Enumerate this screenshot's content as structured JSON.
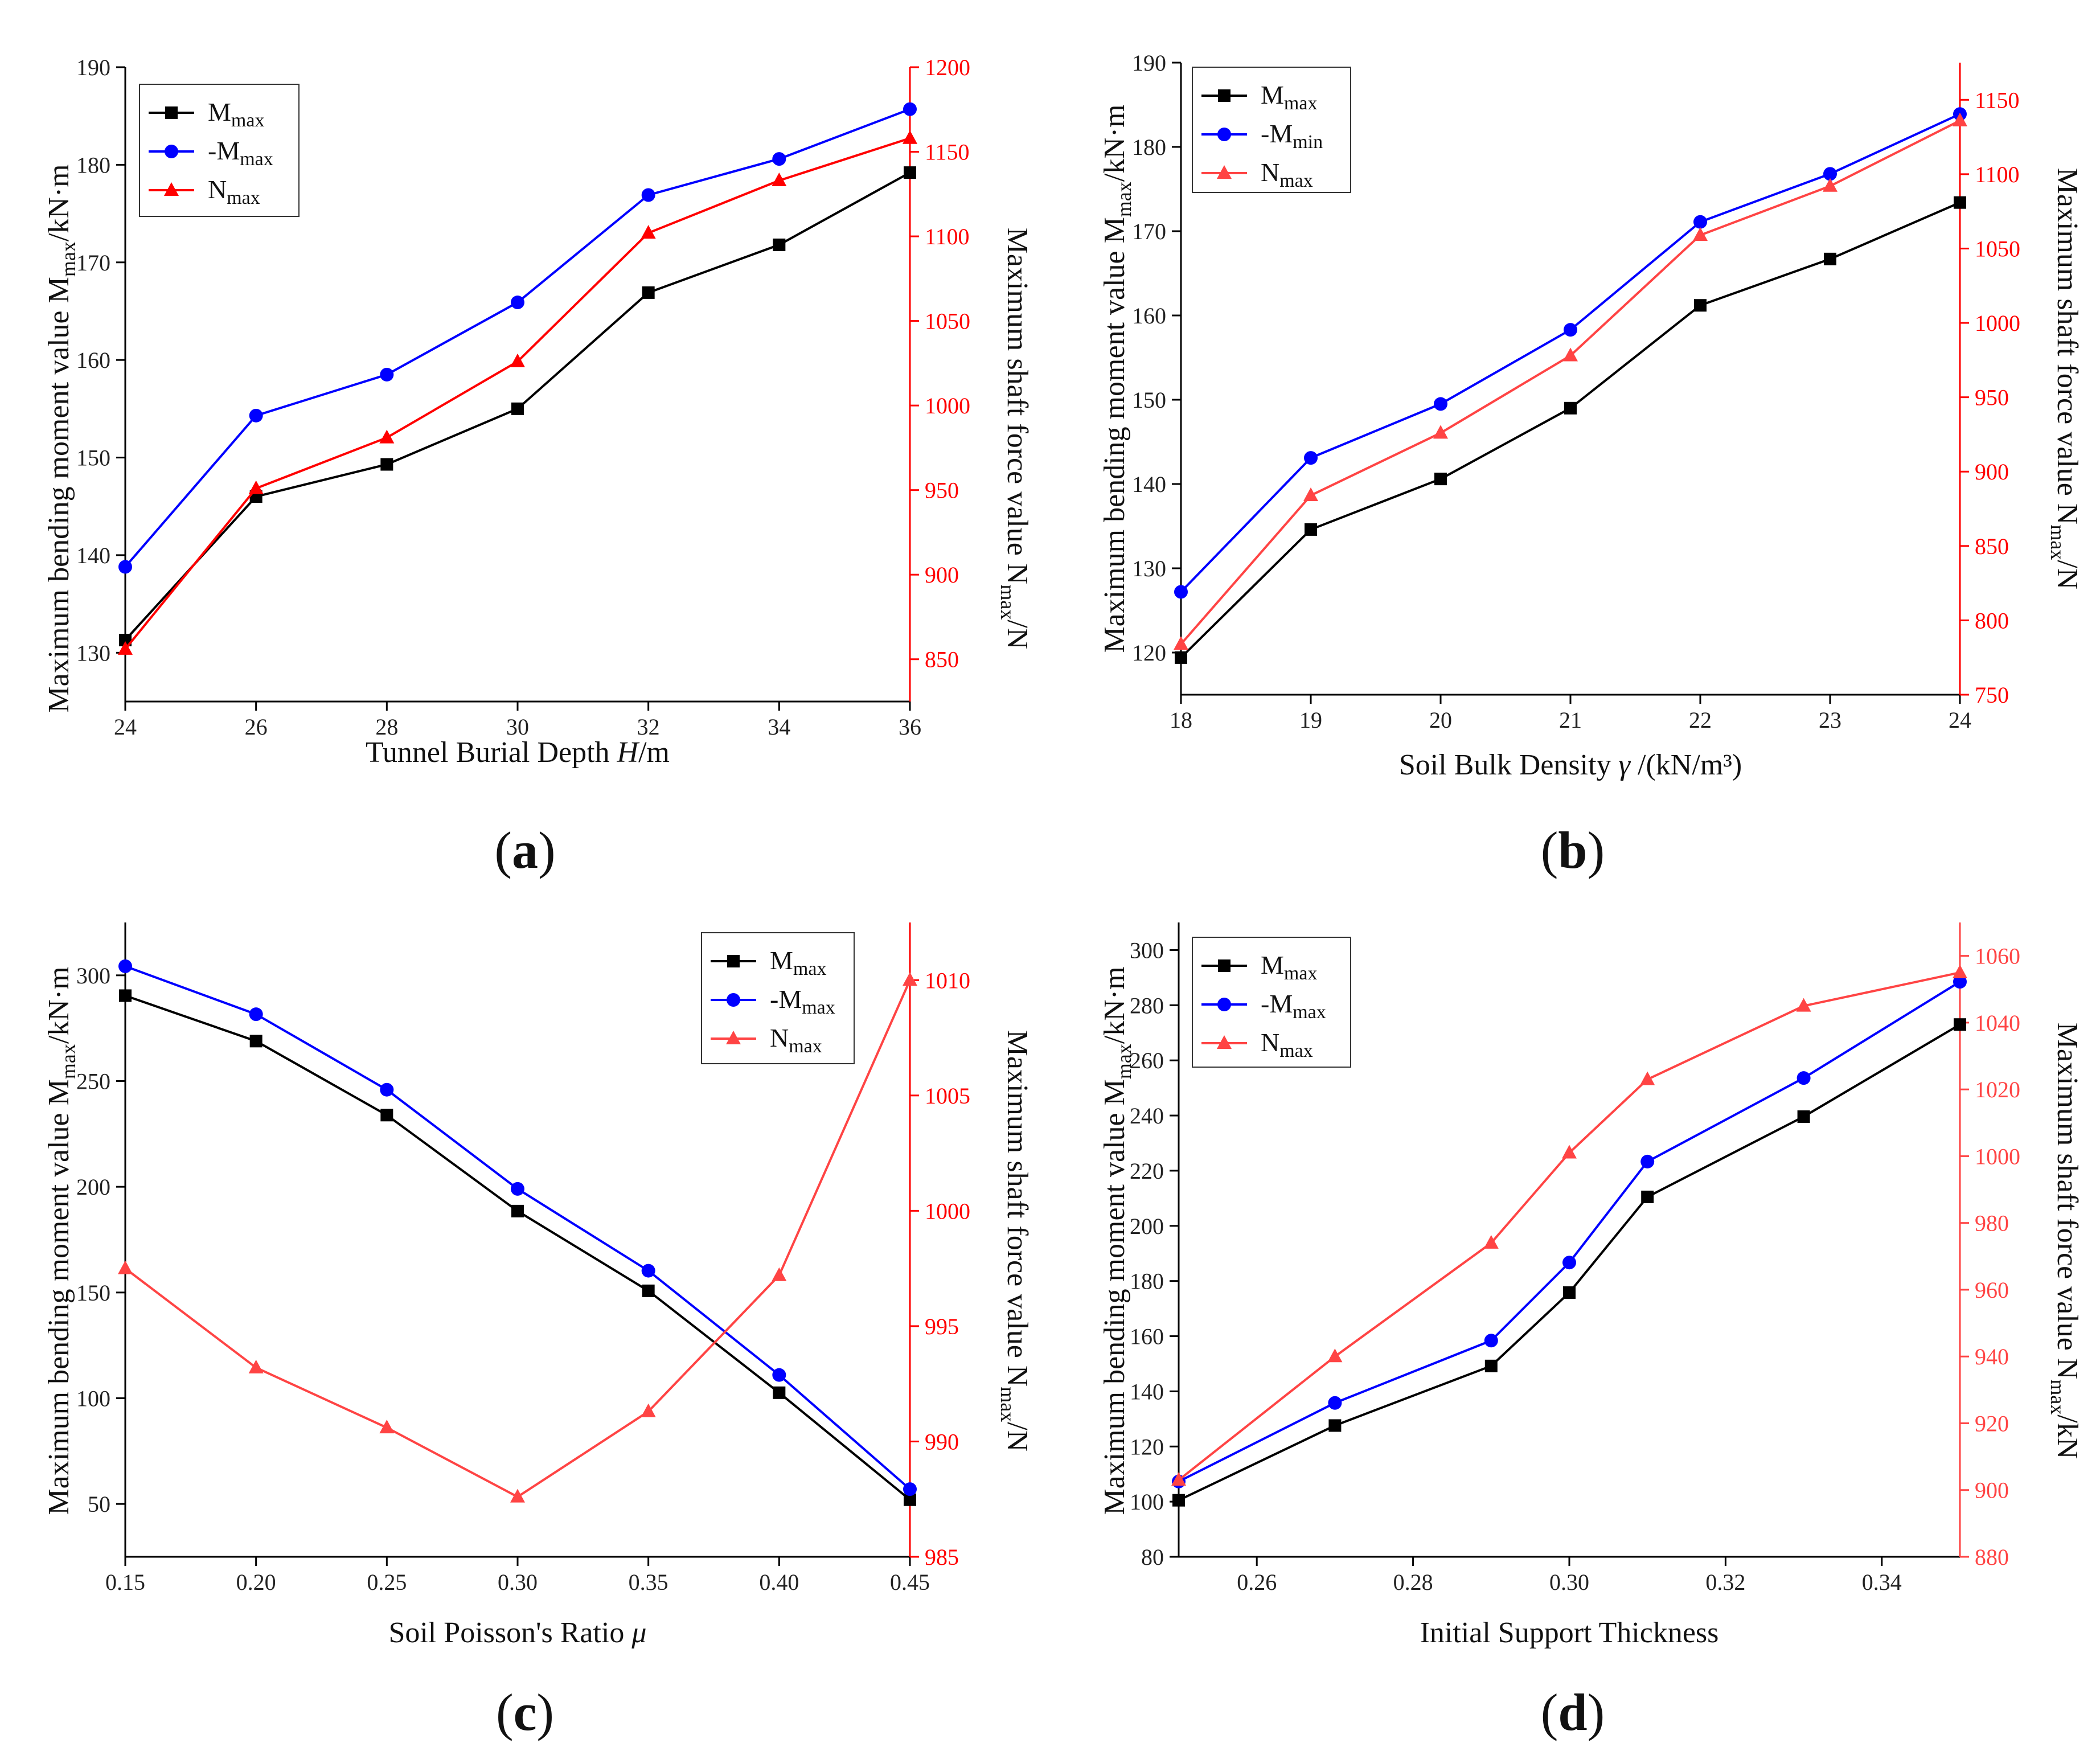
{
  "chart_data": [
    {
      "type": "line",
      "panel_label": "a",
      "xlabel_parts": [
        "Tunnel Burial Depth ",
        "H",
        "/m"
      ],
      "ylabel_left": "Maximum bending moment value M",
      "ylabel_left_sub": "max",
      "ylabel_left_tail": "/kN·m",
      "ylabel_right": "Maximum shaft force value N",
      "ylabel_right_sub": "max",
      "ylabel_right_tail": "/N",
      "x": [
        24,
        26,
        28,
        30,
        32,
        34,
        36
      ],
      "xlim": [
        24,
        36
      ],
      "xticks": [
        "24",
        "26",
        "28",
        "30",
        "32",
        "34",
        "36"
      ],
      "ylim_left": [
        125,
        190
      ],
      "yticks_left": [
        "130",
        "140",
        "150",
        "160",
        "170",
        "180",
        "190"
      ],
      "ylim_right": [
        825,
        1200
      ],
      "yticks_right": [
        "850",
        "900",
        "950",
        "1000",
        "1050",
        "1100",
        "1150",
        "1200"
      ],
      "right_axis_color": "#ff0000",
      "legend_position": "top-left",
      "series": [
        {
          "name": "M",
          "sub": "max",
          "axis": "left",
          "color": "#000000",
          "marker": "square",
          "values": [
            131.3,
            146.0,
            149.3,
            155.0,
            166.9,
            171.8,
            179.2
          ]
        },
        {
          "name": "-M",
          "sub": "max",
          "axis": "left",
          "color": "#0000ff",
          "marker": "circle",
          "values": [
            138.8,
            154.3,
            158.5,
            165.9,
            176.9,
            180.6,
            185.7
          ]
        },
        {
          "name": "N",
          "sub": "max",
          "axis": "right",
          "color": "#ff0000",
          "marker": "triangle",
          "values": [
            856,
            951,
            981,
            1026,
            1102,
            1133,
            1158
          ]
        }
      ]
    },
    {
      "type": "line",
      "panel_label": "b",
      "xlabel_parts": [
        "Soil Bulk Density  ",
        "γ",
        " /(kN/m³)"
      ],
      "ylabel_left": "Maximum bending moment value M",
      "ylabel_left_sub": "max",
      "ylabel_left_tail": "/kN·m",
      "ylabel_right": "Maximum shaft force value N",
      "ylabel_right_sub": "max",
      "ylabel_right_tail": "/N",
      "x": [
        18,
        19,
        20,
        21,
        22,
        23,
        24
      ],
      "xlim": [
        18,
        24
      ],
      "xticks": [
        "18",
        "19",
        "20",
        "21",
        "22",
        "23",
        "24"
      ],
      "ylim_left": [
        115,
        190
      ],
      "yticks_left": [
        "120",
        "130",
        "140",
        "150",
        "160",
        "170",
        "180",
        "190"
      ],
      "ylim_right": [
        750,
        1175
      ],
      "yticks_right": [
        "750",
        "800",
        "850",
        "900",
        "950",
        "1000",
        "1050",
        "1100",
        "1150"
      ],
      "right_axis_color": "#ff0000",
      "legend_position": "top-left",
      "series": [
        {
          "name": "M",
          "sub": "max",
          "axis": "left",
          "color": "#000000",
          "marker": "square",
          "values": [
            119.4,
            134.6,
            140.6,
            149.0,
            161.2,
            166.7,
            173.4
          ]
        },
        {
          "name": "-M",
          "sub": "min",
          "axis": "left",
          "color": "#0000ff",
          "marker": "circle",
          "values": [
            127.2,
            143.1,
            149.5,
            158.3,
            171.1,
            176.8,
            183.9
          ]
        },
        {
          "name": "N",
          "sub": "max",
          "axis": "right",
          "color": "#ff4444",
          "marker": "triangle",
          "values": [
            784,
            884,
            926,
            978,
            1059,
            1092,
            1136
          ]
        }
      ]
    },
    {
      "type": "line",
      "panel_label": "c",
      "xlabel_parts": [
        "Soil Poisson's Ratio ",
        "μ",
        ""
      ],
      "ylabel_left": "Maximum bending moment value M",
      "ylabel_left_sub": "max",
      "ylabel_left_tail": "/kN·m",
      "ylabel_right": "Maximum shaft force value N",
      "ylabel_right_sub": "max",
      "ylabel_right_tail": "/N",
      "x": [
        0.15,
        0.2,
        0.25,
        0.3,
        0.35,
        0.4,
        0.45
      ],
      "xlim": [
        0.15,
        0.45
      ],
      "xticks": [
        "0.15",
        "0.20",
        "0.25",
        "0.30",
        "0.35",
        "0.40",
        "0.45"
      ],
      "ylim_left": [
        25,
        325
      ],
      "yticks_left": [
        "50",
        "100",
        "150",
        "200",
        "250",
        "300"
      ],
      "ylim_right": [
        985,
        1012.5
      ],
      "yticks_right": [
        "985",
        "990",
        "995",
        "1000",
        "1005",
        "1010"
      ],
      "right_axis_color": "#ff0000",
      "legend_position": "top-right",
      "series": [
        {
          "name": "M",
          "sub": "max",
          "axis": "left",
          "color": "#000000",
          "marker": "square",
          "values": [
            290.4,
            268.9,
            233.9,
            188.5,
            150.8,
            102.6,
            52.0
          ]
        },
        {
          "name": "-M",
          "sub": "max",
          "axis": "left",
          "color": "#0000ff",
          "marker": "circle",
          "values": [
            304.3,
            281.6,
            245.9,
            199.0,
            160.3,
            111.0,
            57.0
          ]
        },
        {
          "name": "N",
          "sub": "max",
          "axis": "right",
          "color": "#ff4444",
          "marker": "triangle",
          "values": [
            997.5,
            993.2,
            990.6,
            987.6,
            991.3,
            997.2,
            1010.0
          ]
        }
      ]
    },
    {
      "type": "line",
      "panel_label": "d",
      "xlabel_parts": [
        "Initial Support Thickness",
        "",
        ""
      ],
      "ylabel_left": "Maximum bending moment value M",
      "ylabel_left_sub": "max",
      "ylabel_left_tail": "/kN·m",
      "ylabel_right": "Maximum shaft force value N",
      "ylabel_right_sub": "max",
      "ylabel_right_tail": "/kN",
      "x": [
        0.25,
        0.27,
        0.29,
        0.3,
        0.31,
        0.33,
        0.35
      ],
      "xlim": [
        0.25,
        0.35
      ],
      "xticks": [
        "0.26",
        "0.28",
        "0.30",
        "0.32",
        "0.34"
      ],
      "xtick_values": [
        0.26,
        0.28,
        0.3,
        0.32,
        0.34
      ],
      "ylim_left": [
        80,
        310
      ],
      "yticks_left": [
        "80",
        "100",
        "120",
        "140",
        "160",
        "180",
        "200",
        "220",
        "240",
        "260",
        "280",
        "300"
      ],
      "ylim_right": [
        880,
        1070
      ],
      "yticks_right": [
        "880",
        "900",
        "920",
        "940",
        "960",
        "980",
        "1000",
        "1020",
        "1040",
        "1060"
      ],
      "right_axis_color": "#ff4444",
      "legend_position": "top-left",
      "series": [
        {
          "name": "M",
          "sub": "max",
          "axis": "left",
          "color": "#000000",
          "marker": "square",
          "values": [
            100.5,
            127.6,
            149.2,
            175.8,
            210.5,
            239.6,
            273.0
          ]
        },
        {
          "name": "-M",
          "sub": "max",
          "axis": "left",
          "color": "#0000ff",
          "marker": "circle",
          "values": [
            107.3,
            135.8,
            158.4,
            186.7,
            223.3,
            253.6,
            288.5
          ]
        },
        {
          "name": "N",
          "sub": "max",
          "axis": "right",
          "color": "#ff4444",
          "marker": "triangle",
          "values": [
            903,
            940,
            974,
            1001,
            1023,
            1045,
            1055
          ]
        }
      ]
    }
  ]
}
